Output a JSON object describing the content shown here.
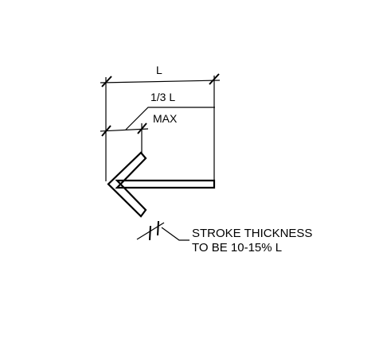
{
  "labels": {
    "length": "L",
    "head_fraction": "1/3 L",
    "head_max": "MAX",
    "stroke_note_line1": "STROKE THICKNESS",
    "stroke_note_line2": "TO BE 10-15% L"
  },
  "colors": {
    "line": "#000000",
    "background": "#ffffff"
  }
}
